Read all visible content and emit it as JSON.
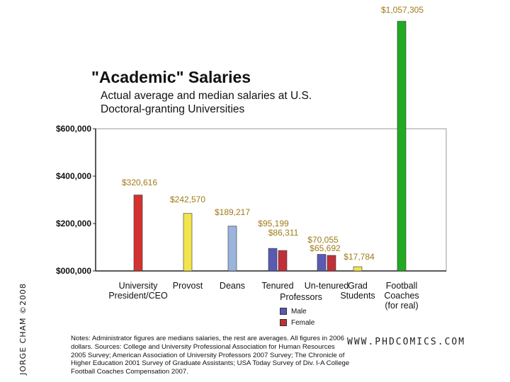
{
  "title": "\"Academic\" Salaries",
  "subtitle": "Actual average and median salaries at U.S. Doctoral-granting Universities",
  "credit": "JORGE CHAM ©2008",
  "website": "WWW.PHDCOMICS.COM",
  "notes": "Notes: Administrator figures are medians salaries, the rest are averages. All figures in 2006 dollars. Sources: College and University Professional Association for Human Resources 2005 Survey; American Association of University Professors 2007 Survey; The Chronicle of Higher Education 2001 Survey of Graduate Assistants; USA Today Survey of Div. I-A College Football Coaches Compensation 2007.",
  "legend": [
    {
      "label": "Male",
      "color": "#5a5ab4"
    },
    {
      "label": "Female",
      "color": "#c0303a"
    }
  ],
  "chart_data": {
    "type": "bar",
    "ylim": [
      0,
      600000
    ],
    "yticks": [
      {
        "value": 0,
        "label": "$000,000"
      },
      {
        "value": 200000,
        "label": "$200,000"
      },
      {
        "value": 400000,
        "label": "$400,000"
      },
      {
        "value": 600000,
        "label": "$600,000"
      }
    ],
    "categories": [
      {
        "label": [
          "University",
          "President/CEO"
        ],
        "bars": [
          {
            "value": 320616,
            "label": "$320,616",
            "color": "#d43232"
          }
        ]
      },
      {
        "label": [
          "Provost"
        ],
        "bars": [
          {
            "value": 242570,
            "label": "$242,570",
            "color": "#f2e44c"
          }
        ]
      },
      {
        "label": [
          "Deans"
        ],
        "bars": [
          {
            "value": 189217,
            "label": "$189,217",
            "color": "#9ab4dc"
          }
        ]
      },
      {
        "label": [
          "Tenured"
        ],
        "group_label": [
          "Professors"
        ],
        "bars": [
          {
            "value": 95199,
            "label": "$95,199",
            "color": "#5a5ab4"
          },
          {
            "value": 86311,
            "label": "$86,311",
            "color": "#c0303a"
          }
        ]
      },
      {
        "label": [
          "Un-tenured"
        ],
        "bars": [
          {
            "value": 70055,
            "label": "$70,055",
            "color": "#5a5ab4"
          },
          {
            "value": 65692,
            "label": "$65,692",
            "color": "#c0303a"
          }
        ]
      },
      {
        "label": [
          "Grad",
          "Students"
        ],
        "bars": [
          {
            "value": 17784,
            "label": "$17,784",
            "color": "#f2e44c"
          }
        ]
      },
      {
        "label": [
          "Football",
          "Coaches",
          "(for real)"
        ],
        "bars": [
          {
            "value": 1057305,
            "label": "$1,057,305",
            "color": "#22aa22"
          }
        ]
      }
    ],
    "grid": false,
    "legend_position": "bottom-center"
  }
}
